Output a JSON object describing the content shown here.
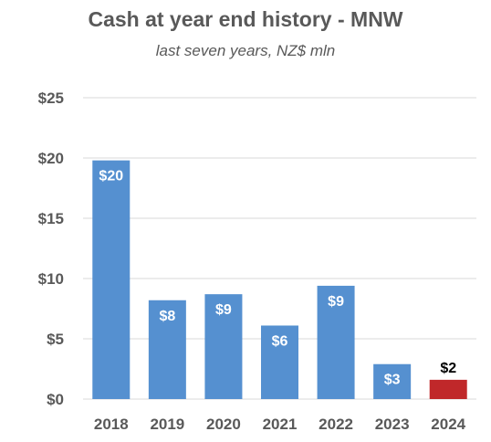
{
  "chart_data": {
    "type": "bar",
    "title": "Cash at year end history - MNW",
    "subtitle": "last seven years, NZ$ mln",
    "categories": [
      "2018",
      "2019",
      "2020",
      "2021",
      "2022",
      "2023",
      "2024"
    ],
    "values": [
      19.8,
      8.2,
      8.7,
      6.1,
      9.4,
      2.9,
      1.6
    ],
    "data_labels": [
      "$20",
      "$8",
      "$9",
      "$6",
      "$9",
      "$3",
      "$2"
    ],
    "y_ticks": [
      0,
      5,
      10,
      15,
      20,
      25
    ],
    "y_tick_labels": [
      "$0",
      "$5",
      "$10",
      "$15",
      "$20",
      "$25"
    ],
    "ylim": [
      0,
      25
    ],
    "xlabel": "",
    "ylabel": "",
    "grid": true,
    "colors": {
      "bar": "#5590d0",
      "highlight_bar": "#c0282a",
      "highlight_category": "2024",
      "grid": "#d9d9d9",
      "text": "#595959",
      "label_inside": "#ffffff",
      "label_outside": "#000000"
    }
  }
}
